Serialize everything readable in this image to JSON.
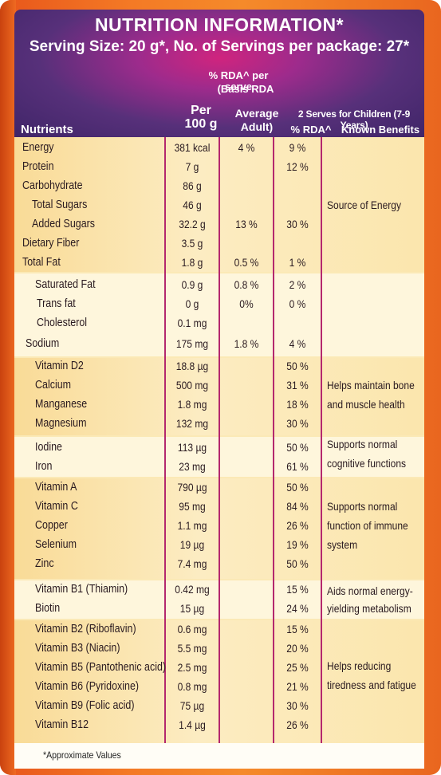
{
  "title": "NUTRITION INFORMATION*",
  "serving": "Serving Size: 20 g*, No. of Servings per package: 27*",
  "headers": {
    "rda_per_serve": "% RDA^ per serve",
    "basis_rda": "(Basis RDA",
    "per_100g_line1": "Per",
    "per_100g_line2": "100 g",
    "average_line1": "Average",
    "average_line2": "Adult)",
    "children": "2 Serves for Children (7-9 Years)",
    "rda_pct": "% RDA^",
    "benefits": "Known Benefits",
    "nutrients": "Nutrients"
  },
  "rows": [
    {
      "name": "Energy",
      "per100": "381 kcal",
      "adult": "4 %",
      "child": "9 %"
    },
    {
      "name": "Protein",
      "per100": "7 g",
      "adult": "",
      "child": "12 %"
    },
    {
      "name": "Carbohydrate",
      "per100": "86 g",
      "adult": "",
      "child": ""
    },
    {
      "name": "Total Sugars",
      "per100": "46 g",
      "adult": "",
      "child": ""
    },
    {
      "name": "Added Sugars",
      "per100": "32.2 g",
      "adult": "13 %",
      "child": "30 %"
    },
    {
      "name": "Dietary Fiber",
      "per100": "3.5 g",
      "adult": "",
      "child": ""
    },
    {
      "name": "Total Fat",
      "per100": "1.8 g",
      "adult": "0.5 %",
      "child": "1 %"
    },
    {
      "name": "Saturated Fat",
      "per100": "0.9 g",
      "adult": "0.8 %",
      "child": "2 %"
    },
    {
      "name": "Trans fat",
      "per100": "0 g",
      "adult": "0%",
      "child": "0 %"
    },
    {
      "name": "Cholesterol",
      "per100": "0.1 mg",
      "adult": "",
      "child": ""
    },
    {
      "name": "Sodium",
      "per100": "175 mg",
      "adult": "1.8 %",
      "child": "4 %"
    },
    {
      "name": "Vitamin D2",
      "per100": "18.8 µg",
      "adult": "",
      "child": "50 %"
    },
    {
      "name": "Calcium",
      "per100": "500 mg",
      "adult": "",
      "child": "31 %"
    },
    {
      "name": "Manganese",
      "per100": "1.8 mg",
      "adult": "",
      "child": "18 %"
    },
    {
      "name": "Magnesium",
      "per100": "132 mg",
      "adult": "",
      "child": "30 %"
    },
    {
      "name": "Iodine",
      "per100": "113 µg",
      "adult": "",
      "child": "50 %"
    },
    {
      "name": "Iron",
      "per100": "23 mg",
      "adult": "",
      "child": "61 %"
    },
    {
      "name": "Vitamin A",
      "per100": "790 µg",
      "adult": "",
      "child": "50 %"
    },
    {
      "name": "Vitamin C",
      "per100": "95 mg",
      "adult": "",
      "child": "84 %"
    },
    {
      "name": "Copper",
      "per100": "1.1 mg",
      "adult": "",
      "child": "26 %"
    },
    {
      "name": "Selenium",
      "per100": "19 µg",
      "adult": "",
      "child": "19 %"
    },
    {
      "name": "Zinc",
      "per100": "7.4 mg",
      "adult": "",
      "child": "50 %"
    },
    {
      "name": "Vitamin B1 (Thiamin)",
      "per100": "0.42 mg",
      "adult": "",
      "child": "15 %"
    },
    {
      "name": "Biotin",
      "per100": "15 µg",
      "adult": "",
      "child": "24 %"
    },
    {
      "name": "Vitamin B2 (Riboflavin)",
      "per100": "0.6 mg",
      "adult": "",
      "child": "15 %"
    },
    {
      "name": "Vitamin B3 (Niacin)",
      "per100": "5.5 mg",
      "adult": "",
      "child": "20 %"
    },
    {
      "name": "Vitamin B5 (Pantothenic acid)",
      "per100": "2.5 mg",
      "adult": "",
      "child": "25 %"
    },
    {
      "name": "Vitamin B6 (Pyridoxine)",
      "per100": "0.8 mg",
      "adult": "",
      "child": "21 %"
    },
    {
      "name": "Vitamin B9 (Folic acid)",
      "per100": "75 µg",
      "adult": "",
      "child": "30 %"
    },
    {
      "name": "Vitamin B12",
      "per100": "1.4 µg",
      "adult": "",
      "child": "26 %"
    }
  ],
  "benefits": [
    {
      "line1": "Source of Energy",
      "line2": ""
    },
    {
      "line1": "Helps maintain bone",
      "line2": "and muscle health"
    },
    {
      "line1": "Supports normal",
      "line2": "cognitive functions"
    },
    {
      "line1": "Supports normal",
      "line2": "function of immune",
      "line3": "system"
    },
    {
      "line1": "Aids normal energy-",
      "line2": "yielding metabolism"
    },
    {
      "line1": "Helps reducing",
      "line2": "tiredness and fatigue"
    }
  ],
  "footnote": "*Approximate Values"
}
